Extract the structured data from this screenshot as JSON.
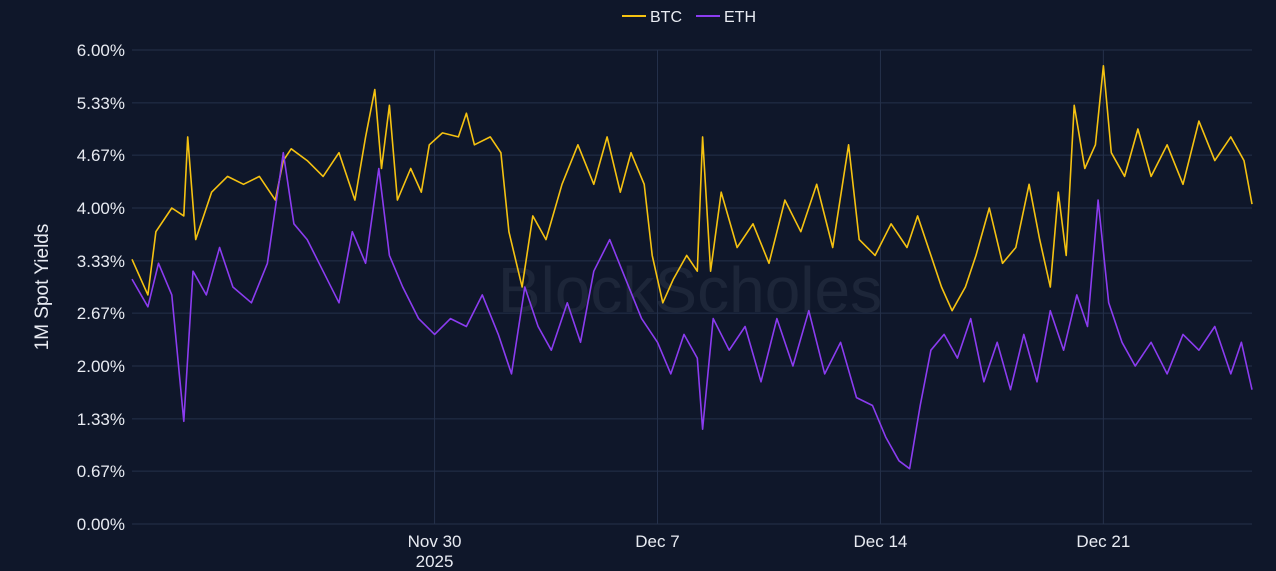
{
  "watermark": "BlockScholes",
  "chart_data": {
    "type": "line",
    "ylabel": "1M Spot Yields",
    "xlabel": "",
    "ylim": [
      0,
      6
    ],
    "y_ticks": [
      {
        "value": 0,
        "label": "0.00%"
      },
      {
        "value": 0.67,
        "label": "0.67%"
      },
      {
        "value": 1.33,
        "label": "1.33%"
      },
      {
        "value": 2.0,
        "label": "2.00%"
      },
      {
        "value": 2.67,
        "label": "2.67%"
      },
      {
        "value": 3.33,
        "label": "3.33%"
      },
      {
        "value": 4.0,
        "label": "4.00%"
      },
      {
        "value": 4.67,
        "label": "4.67%"
      },
      {
        "value": 5.33,
        "label": "5.33%"
      },
      {
        "value": 6.0,
        "label": "6.00%"
      }
    ],
    "xlim": [
      "2025-11-20T12:00",
      "2025-12-25T16:00"
    ],
    "x_ticks": [
      {
        "date": "2025-11-30T00:00",
        "label": "Nov 30",
        "sublabel": "2025"
      },
      {
        "date": "2025-12-07T00:00",
        "label": "Dec 7",
        "sublabel": ""
      },
      {
        "date": "2025-12-14T00:00",
        "label": "Dec 14",
        "sublabel": ""
      },
      {
        "date": "2025-12-21T00:00",
        "label": "Dec 21",
        "sublabel": ""
      }
    ],
    "grid": true,
    "legend_position": "top-center",
    "series": [
      {
        "name": "BTC",
        "color": "#f5c211",
        "points": [
          [
            "2025-11-20T12:00",
            3.35
          ],
          [
            "2025-11-21T00:00",
            2.9
          ],
          [
            "2025-11-21T06:00",
            3.7
          ],
          [
            "2025-11-21T18:00",
            4.0
          ],
          [
            "2025-11-22T03:00",
            3.9
          ],
          [
            "2025-11-22T06:00",
            4.9
          ],
          [
            "2025-11-22T12:00",
            3.6
          ],
          [
            "2025-11-23T00:00",
            4.2
          ],
          [
            "2025-11-23T12:00",
            4.4
          ],
          [
            "2025-11-24T00:00",
            4.3
          ],
          [
            "2025-11-24T12:00",
            4.4
          ],
          [
            "2025-11-25T00:00",
            4.1
          ],
          [
            "2025-11-25T06:00",
            4.6
          ],
          [
            "2025-11-25T12:00",
            4.75
          ],
          [
            "2025-11-26T00:00",
            4.6
          ],
          [
            "2025-11-26T12:00",
            4.4
          ],
          [
            "2025-11-27T00:00",
            4.7
          ],
          [
            "2025-11-27T12:00",
            4.1
          ],
          [
            "2025-11-27T20:00",
            4.9
          ],
          [
            "2025-11-28T03:00",
            5.5
          ],
          [
            "2025-11-28T08:00",
            4.5
          ],
          [
            "2025-11-28T14:00",
            5.3
          ],
          [
            "2025-11-28T20:00",
            4.1
          ],
          [
            "2025-11-29T06:00",
            4.5
          ],
          [
            "2025-11-29T14:00",
            4.2
          ],
          [
            "2025-11-29T20:00",
            4.8
          ],
          [
            "2025-11-30T06:00",
            4.95
          ],
          [
            "2025-11-30T18:00",
            4.9
          ],
          [
            "2025-12-01T00:00",
            5.2
          ],
          [
            "2025-12-01T06:00",
            4.8
          ],
          [
            "2025-12-01T18:00",
            4.9
          ],
          [
            "2025-12-02T02:00",
            4.7
          ],
          [
            "2025-12-02T08:00",
            3.7
          ],
          [
            "2025-12-02T18:00",
            3.0
          ],
          [
            "2025-12-03T02:00",
            3.9
          ],
          [
            "2025-12-03T12:00",
            3.6
          ],
          [
            "2025-12-04T00:00",
            4.3
          ],
          [
            "2025-12-04T12:00",
            4.8
          ],
          [
            "2025-12-05T00:00",
            4.3
          ],
          [
            "2025-12-05T10:00",
            4.9
          ],
          [
            "2025-12-05T20:00",
            4.2
          ],
          [
            "2025-12-06T04:00",
            4.7
          ],
          [
            "2025-12-06T14:00",
            4.3
          ],
          [
            "2025-12-06T20:00",
            3.4
          ],
          [
            "2025-12-07T04:00",
            2.8
          ],
          [
            "2025-12-07T12:00",
            3.1
          ],
          [
            "2025-12-07T22:00",
            3.4
          ],
          [
            "2025-12-08T06:00",
            3.2
          ],
          [
            "2025-12-08T10:00",
            4.9
          ],
          [
            "2025-12-08T16:00",
            3.2
          ],
          [
            "2025-12-09T00:00",
            4.2
          ],
          [
            "2025-12-09T12:00",
            3.5
          ],
          [
            "2025-12-10T00:00",
            3.8
          ],
          [
            "2025-12-10T12:00",
            3.3
          ],
          [
            "2025-12-11T00:00",
            4.1
          ],
          [
            "2025-12-11T12:00",
            3.7
          ],
          [
            "2025-12-12T00:00",
            4.3
          ],
          [
            "2025-12-12T12:00",
            3.5
          ],
          [
            "2025-12-13T00:00",
            4.8
          ],
          [
            "2025-12-13T08:00",
            3.6
          ],
          [
            "2025-12-13T20:00",
            3.4
          ],
          [
            "2025-12-14T08:00",
            3.8
          ],
          [
            "2025-12-14T20:00",
            3.5
          ],
          [
            "2025-12-15T04:00",
            3.9
          ],
          [
            "2025-12-15T14:00",
            3.4
          ],
          [
            "2025-12-15T22:00",
            3.0
          ],
          [
            "2025-12-16T06:00",
            2.7
          ],
          [
            "2025-12-16T16:00",
            3.0
          ],
          [
            "2025-12-17T00:00",
            3.4
          ],
          [
            "2025-12-17T10:00",
            4.0
          ],
          [
            "2025-12-17T20:00",
            3.3
          ],
          [
            "2025-12-18T06:00",
            3.5
          ],
          [
            "2025-12-18T16:00",
            4.3
          ],
          [
            "2025-12-19T00:00",
            3.6
          ],
          [
            "2025-12-19T08:00",
            3.0
          ],
          [
            "2025-12-19T14:00",
            4.2
          ],
          [
            "2025-12-19T20:00",
            3.4
          ],
          [
            "2025-12-20T02:00",
            5.3
          ],
          [
            "2025-12-20T10:00",
            4.5
          ],
          [
            "2025-12-20T18:00",
            4.8
          ],
          [
            "2025-12-21T00:00",
            5.8
          ],
          [
            "2025-12-21T06:00",
            4.7
          ],
          [
            "2025-12-21T16:00",
            4.4
          ],
          [
            "2025-12-22T02:00",
            5.0
          ],
          [
            "2025-12-22T12:00",
            4.4
          ],
          [
            "2025-12-23T00:00",
            4.8
          ],
          [
            "2025-12-23T12:00",
            4.3
          ],
          [
            "2025-12-24T00:00",
            5.1
          ],
          [
            "2025-12-24T12:00",
            4.6
          ],
          [
            "2025-12-25T00:00",
            4.9
          ],
          [
            "2025-12-25T10:00",
            4.6
          ],
          [
            "2025-12-25T16:00",
            4.05
          ]
        ]
      },
      {
        "name": "ETH",
        "color": "#8b3cf0",
        "points": [
          [
            "2025-11-20T12:00",
            3.1
          ],
          [
            "2025-11-21T00:00",
            2.75
          ],
          [
            "2025-11-21T08:00",
            3.3
          ],
          [
            "2025-11-21T18:00",
            2.9
          ],
          [
            "2025-11-22T03:00",
            1.3
          ],
          [
            "2025-11-22T10:00",
            3.2
          ],
          [
            "2025-11-22T20:00",
            2.9
          ],
          [
            "2025-11-23T06:00",
            3.5
          ],
          [
            "2025-11-23T16:00",
            3.0
          ],
          [
            "2025-11-24T06:00",
            2.8
          ],
          [
            "2025-11-24T18:00",
            3.3
          ],
          [
            "2025-11-25T06:00",
            4.7
          ],
          [
            "2025-11-25T14:00",
            3.8
          ],
          [
            "2025-11-26T00:00",
            3.6
          ],
          [
            "2025-11-26T12:00",
            3.2
          ],
          [
            "2025-11-27T00:00",
            2.8
          ],
          [
            "2025-11-27T10:00",
            3.7
          ],
          [
            "2025-11-27T20:00",
            3.3
          ],
          [
            "2025-11-28T06:00",
            4.5
          ],
          [
            "2025-11-28T14:00",
            3.4
          ],
          [
            "2025-11-29T00:00",
            3.0
          ],
          [
            "2025-11-29T12:00",
            2.6
          ],
          [
            "2025-11-30T00:00",
            2.4
          ],
          [
            "2025-11-30T12:00",
            2.6
          ],
          [
            "2025-12-01T00:00",
            2.5
          ],
          [
            "2025-12-01T12:00",
            2.9
          ],
          [
            "2025-12-02T00:00",
            2.4
          ],
          [
            "2025-12-02T10:00",
            1.9
          ],
          [
            "2025-12-02T20:00",
            3.0
          ],
          [
            "2025-12-03T06:00",
            2.5
          ],
          [
            "2025-12-03T16:00",
            2.2
          ],
          [
            "2025-12-04T04:00",
            2.8
          ],
          [
            "2025-12-04T14:00",
            2.3
          ],
          [
            "2025-12-05T00:00",
            3.2
          ],
          [
            "2025-12-05T12:00",
            3.6
          ],
          [
            "2025-12-06T00:00",
            3.1
          ],
          [
            "2025-12-06T12:00",
            2.6
          ],
          [
            "2025-12-07T00:00",
            2.3
          ],
          [
            "2025-12-07T10:00",
            1.9
          ],
          [
            "2025-12-07T20:00",
            2.4
          ],
          [
            "2025-12-08T06:00",
            2.1
          ],
          [
            "2025-12-08T10:00",
            1.2
          ],
          [
            "2025-12-08T18:00",
            2.6
          ],
          [
            "2025-12-09T06:00",
            2.2
          ],
          [
            "2025-12-09T18:00",
            2.5
          ],
          [
            "2025-12-10T06:00",
            1.8
          ],
          [
            "2025-12-10T18:00",
            2.6
          ],
          [
            "2025-12-11T06:00",
            2.0
          ],
          [
            "2025-12-11T18:00",
            2.7
          ],
          [
            "2025-12-12T06:00",
            1.9
          ],
          [
            "2025-12-12T18:00",
            2.3
          ],
          [
            "2025-12-13T06:00",
            1.6
          ],
          [
            "2025-12-13T18:00",
            1.5
          ],
          [
            "2025-12-14T04:00",
            1.1
          ],
          [
            "2025-12-14T14:00",
            0.8
          ],
          [
            "2025-12-14T22:00",
            0.7
          ],
          [
            "2025-12-15T06:00",
            1.5
          ],
          [
            "2025-12-15T14:00",
            2.2
          ],
          [
            "2025-12-16T00:00",
            2.4
          ],
          [
            "2025-12-16T10:00",
            2.1
          ],
          [
            "2025-12-16T20:00",
            2.6
          ],
          [
            "2025-12-17T06:00",
            1.8
          ],
          [
            "2025-12-17T16:00",
            2.3
          ],
          [
            "2025-12-18T02:00",
            1.7
          ],
          [
            "2025-12-18T12:00",
            2.4
          ],
          [
            "2025-12-18T22:00",
            1.8
          ],
          [
            "2025-12-19T08:00",
            2.7
          ],
          [
            "2025-12-19T18:00",
            2.2
          ],
          [
            "2025-12-20T04:00",
            2.9
          ],
          [
            "2025-12-20T12:00",
            2.5
          ],
          [
            "2025-12-20T20:00",
            4.1
          ],
          [
            "2025-12-21T04:00",
            2.8
          ],
          [
            "2025-12-21T14:00",
            2.3
          ],
          [
            "2025-12-22T00:00",
            2.0
          ],
          [
            "2025-12-22T12:00",
            2.3
          ],
          [
            "2025-12-23T00:00",
            1.9
          ],
          [
            "2025-12-23T12:00",
            2.4
          ],
          [
            "2025-12-24T00:00",
            2.2
          ],
          [
            "2025-12-24T12:00",
            2.5
          ],
          [
            "2025-12-25T00:00",
            1.9
          ],
          [
            "2025-12-25T08:00",
            2.3
          ],
          [
            "2025-12-25T16:00",
            1.7
          ]
        ]
      }
    ]
  }
}
